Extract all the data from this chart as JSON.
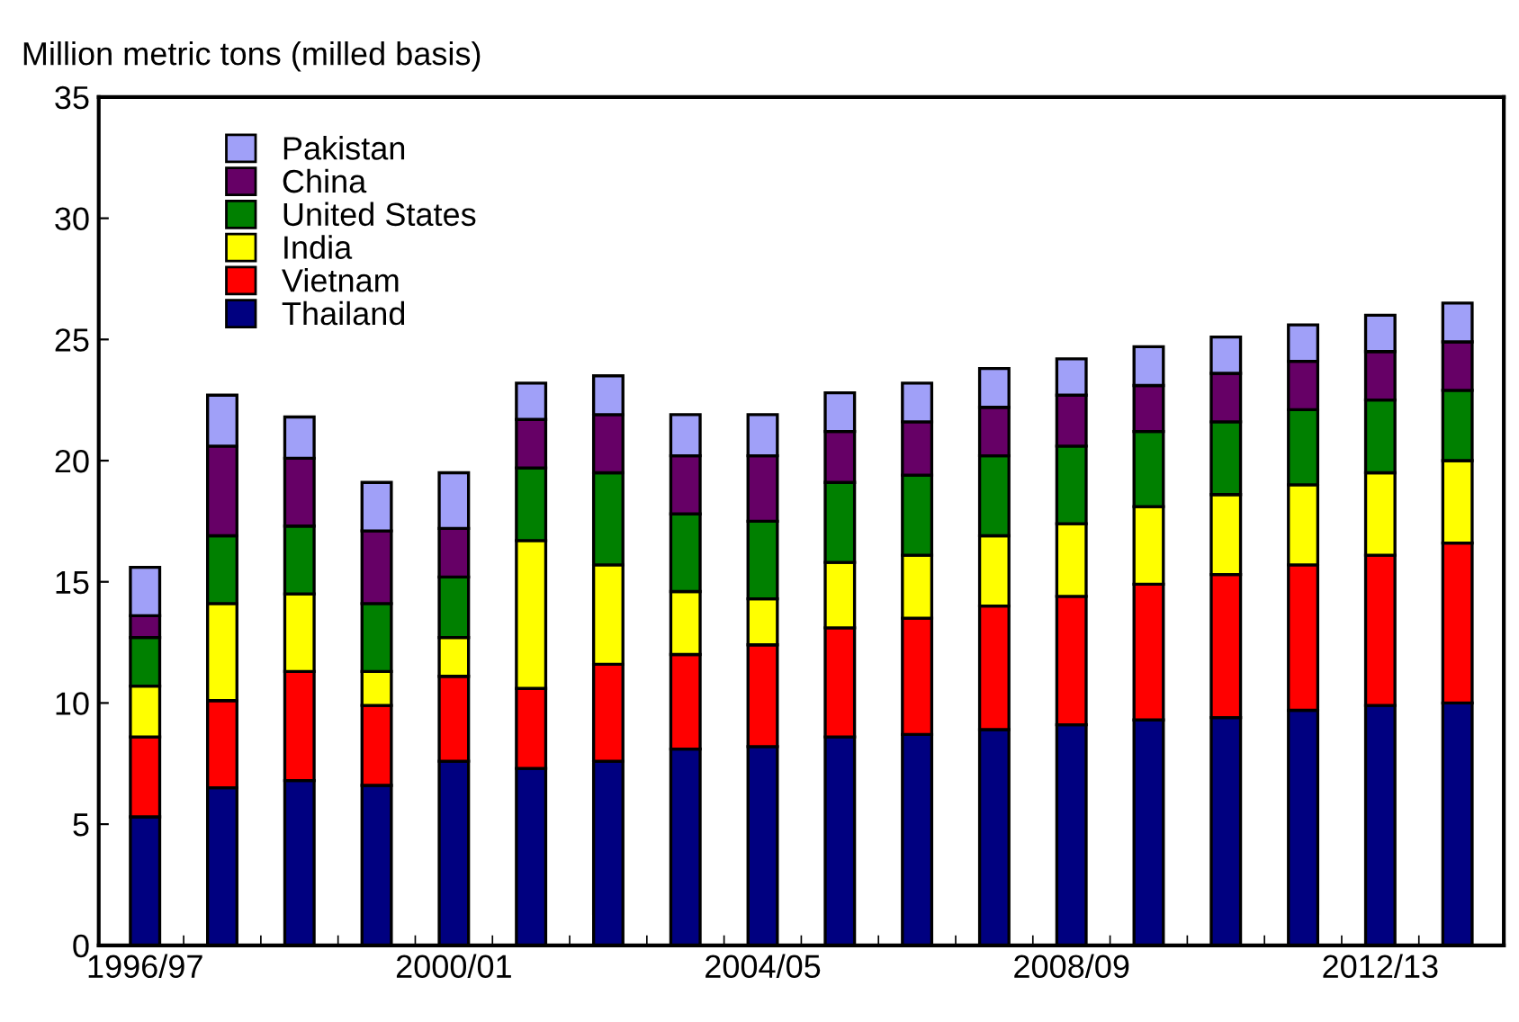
{
  "chart_data": {
    "type": "bar",
    "stacked": true,
    "ylabel": "Million metric tons (milled basis)",
    "categories": [
      "1996/97",
      null,
      null,
      null,
      "2000/01",
      null,
      null,
      null,
      "2004/05",
      null,
      null,
      null,
      "2008/09",
      null,
      null,
      null,
      "2012/13",
      null
    ],
    "series": [
      {
        "name": "Thailand",
        "color": "#000080",
        "values": [
          5.3,
          6.5,
          6.8,
          6.6,
          7.6,
          7.3,
          7.6,
          8.1,
          8.2,
          8.6,
          8.7,
          8.9,
          9.1,
          9.3,
          9.4,
          9.7,
          9.9,
          10.0
        ]
      },
      {
        "name": "Vietnam",
        "color": "#ff0000",
        "values": [
          3.3,
          3.6,
          4.5,
          3.3,
          3.5,
          3.3,
          4.0,
          3.9,
          4.2,
          4.5,
          4.8,
          5.1,
          5.3,
          5.6,
          5.9,
          6.0,
          6.2,
          6.6
        ]
      },
      {
        "name": "India",
        "color": "#ffff00",
        "values": [
          2.1,
          4.0,
          3.2,
          1.4,
          1.6,
          6.1,
          4.1,
          2.6,
          1.9,
          2.7,
          2.6,
          2.9,
          3.0,
          3.2,
          3.3,
          3.3,
          3.4,
          3.4
        ]
      },
      {
        "name": "United States",
        "color": "#008000",
        "values": [
          2.0,
          2.8,
          2.8,
          2.8,
          2.5,
          3.0,
          3.8,
          3.2,
          3.2,
          3.3,
          3.3,
          3.3,
          3.2,
          3.1,
          3.0,
          3.1,
          3.0,
          2.9
        ]
      },
      {
        "name": "China",
        "color": "#660066",
        "values": [
          0.9,
          3.7,
          2.8,
          3.0,
          2.0,
          2.0,
          2.4,
          2.4,
          2.7,
          2.1,
          2.2,
          2.0,
          2.1,
          1.9,
          2.0,
          2.0,
          2.0,
          2.0
        ]
      },
      {
        "name": "Pakistan",
        "color": "#a0a0f8",
        "values": [
          2.0,
          2.1,
          1.7,
          2.0,
          2.3,
          1.5,
          1.6,
          1.7,
          1.7,
          1.6,
          1.6,
          1.6,
          1.5,
          1.6,
          1.5,
          1.5,
          1.5,
          1.6
        ]
      }
    ],
    "ylim": [
      0,
      35
    ],
    "yticks": [
      0,
      5,
      10,
      15,
      20,
      25,
      30,
      35
    ],
    "grid": false,
    "legend": "top left"
  }
}
